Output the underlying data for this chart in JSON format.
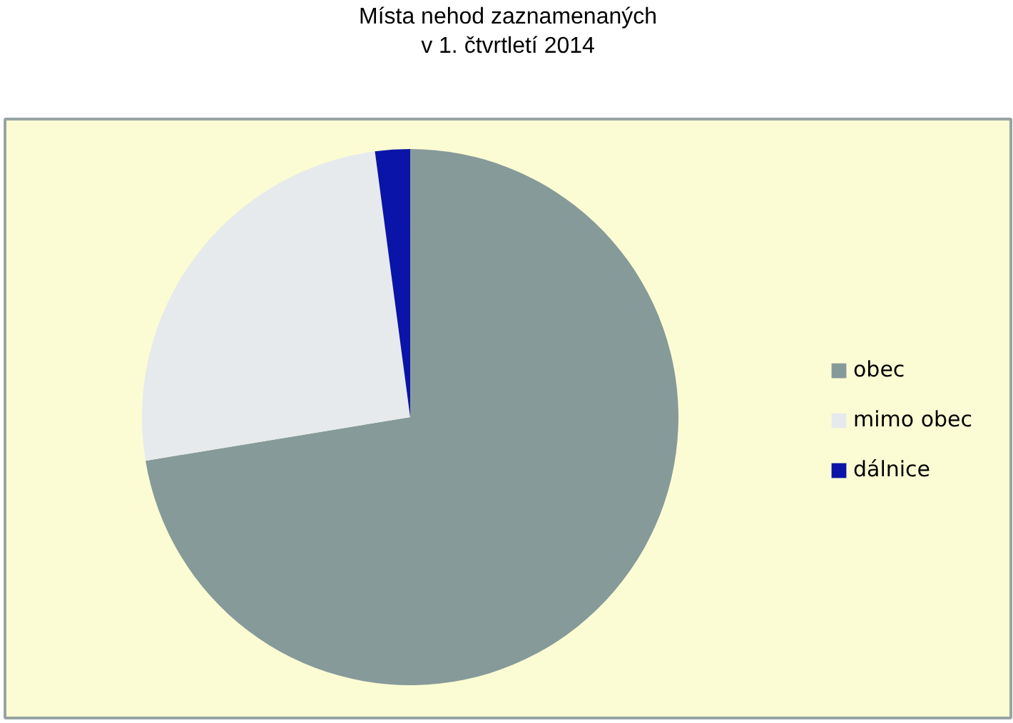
{
  "chart_data": {
    "type": "pie",
    "title": "Místa nehod zaznamenaných\nv 1. čtvrtletí 2014",
    "categories": [
      "obec",
      "mimo obec",
      "dálnice"
    ],
    "values": [
      72.4,
      25.5,
      2.1
    ],
    "colors": [
      "#879a9a",
      "#e6eaec",
      "#0a14a8"
    ],
    "legend": "right"
  }
}
